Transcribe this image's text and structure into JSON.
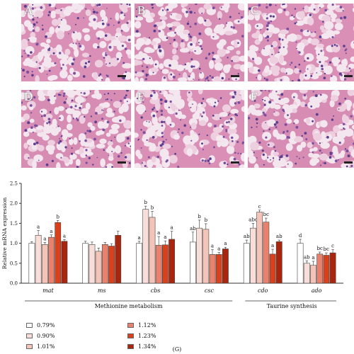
{
  "panels": [
    {
      "label": "A"
    },
    {
      "label": "B"
    },
    {
      "label": "C"
    },
    {
      "label": "D"
    },
    {
      "label": "E"
    },
    {
      "label": "F"
    }
  ],
  "chart_data": {
    "type": "bar",
    "ylabel": "Relative mRNA expression",
    "ylim": [
      0,
      2.5
    ],
    "yticks": [
      "0.0",
      "0.5",
      "1.0",
      "1.5",
      "2.0",
      "2.5"
    ],
    "categories": [
      "mat",
      "ms",
      "cbs",
      "csc",
      "cdo",
      "ado"
    ],
    "series": [
      {
        "name": "0.79%",
        "color": "#ffffff",
        "values": [
          1.0,
          1.0,
          1.0,
          1.03,
          1.0,
          1.0
        ]
      },
      {
        "name": "0.90%",
        "color": "#f8ddd8",
        "values": [
          1.2,
          0.97,
          1.85,
          1.38,
          1.38,
          0.5
        ]
      },
      {
        "name": "1.01%",
        "color": "#f5c4b8",
        "values": [
          0.97,
          0.8,
          1.65,
          1.35,
          1.78,
          0.45
        ]
      },
      {
        "name": "1.12%",
        "color": "#e8826e",
        "values": [
          1.15,
          0.97,
          0.95,
          0.72,
          1.53,
          0.73
        ]
      },
      {
        "name": "1.23%",
        "color": "#d9401c",
        "values": [
          1.52,
          0.93,
          0.96,
          0.72,
          0.73,
          0.7
        ]
      },
      {
        "name": "1.34%",
        "color": "#a8250e",
        "values": [
          1.05,
          1.2,
          1.1,
          0.86,
          1.04,
          0.76
        ]
      }
    ],
    "errors": [
      [
        0.04,
        0.12,
        0.05,
        0.06,
        0.05,
        0.04
      ],
      [
        0.05,
        0.06,
        0.08,
        0.05,
        0.06,
        0.1
      ],
      [
        0.05,
        0.08,
        0.15,
        0.22,
        0.1,
        0.2
      ],
      [
        0.25,
        0.2,
        0.14,
        0.12,
        0.05,
        0.04
      ],
      [
        0.08,
        0.12,
        0.05,
        0.1,
        0.12,
        0.04
      ],
      [
        0.1,
        0.06,
        0.1,
        0.05,
        0.06,
        0.08
      ]
    ],
    "letters": [
      [
        "",
        "a",
        "a",
        "a",
        "b",
        "a"
      ],
      [
        "",
        "",
        "",
        "",
        "",
        ""
      ],
      [
        "a",
        "b",
        "b",
        "a",
        "a",
        "a"
      ],
      [
        "ab",
        "b",
        "b",
        "a",
        "a",
        "a"
      ],
      [
        "ab",
        "abc",
        "c",
        "bc",
        "a",
        "ab"
      ],
      [
        "d",
        "ab",
        "a",
        "bc",
        "bc",
        "c"
      ]
    ],
    "groups": [
      {
        "label": "Methionine metabolism"
      },
      {
        "label": "Taurine synthesis"
      }
    ],
    "caption": "(G)"
  }
}
